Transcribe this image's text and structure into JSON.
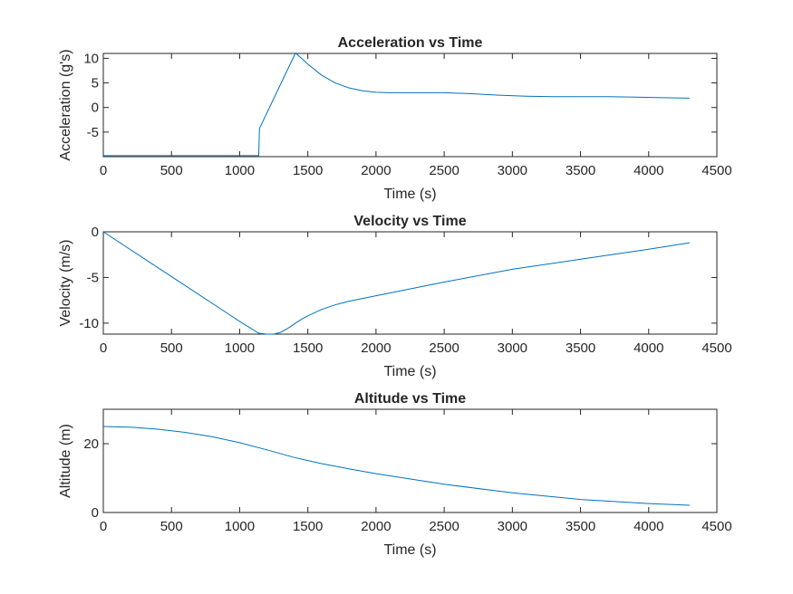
{
  "chart_data": [
    {
      "type": "line",
      "title": "Acceleration vs Time",
      "xlabel": "Time (s)",
      "ylabel": "Acceleration (g's)",
      "xlim": [
        0,
        4500
      ],
      "ylim": [
        -10,
        11
      ],
      "xticks": [
        0,
        500,
        1000,
        1500,
        2000,
        2500,
        3000,
        3500,
        4000,
        4500
      ],
      "yticks": [
        -5,
        0,
        5,
        10
      ],
      "series": [
        {
          "color": "#0072BD",
          "x": [
            0,
            1140,
            1145,
            1150,
            1410,
            1450,
            1500,
            1600,
            1700,
            1800,
            1900,
            2000,
            2100,
            2300,
            2500,
            2700,
            2900,
            3100,
            3300,
            3500,
            3700,
            3900,
            4100,
            4300
          ],
          "y": [
            -9.8,
            -9.8,
            -4.3,
            -4.0,
            11.1,
            10.1,
            8.8,
            6.6,
            5.0,
            4.0,
            3.4,
            3.1,
            3.0,
            3.0,
            3.0,
            2.8,
            2.5,
            2.3,
            2.2,
            2.2,
            2.2,
            2.1,
            2.0,
            1.9
          ]
        }
      ]
    },
    {
      "type": "line",
      "title": "Velocity vs Time",
      "xlabel": "Time (s)",
      "ylabel": "Velocity (m/s)",
      "xlim": [
        0,
        4500
      ],
      "ylim": [
        -11.2,
        0
      ],
      "xticks": [
        0,
        500,
        1000,
        1500,
        2000,
        2500,
        3000,
        3500,
        4000,
        4500
      ],
      "yticks": [
        -10,
        -5,
        0
      ],
      "series": [
        {
          "color": "#0072BD",
          "x": [
            0,
            500,
            1000,
            1140,
            1200,
            1250,
            1300,
            1350,
            1400,
            1450,
            1500,
            1600,
            1700,
            1800,
            2000,
            2500,
            3000,
            3500,
            4000,
            4300
          ],
          "y": [
            0,
            -4.9,
            -9.8,
            -11.1,
            -11.2,
            -11.2,
            -11.0,
            -10.6,
            -10.1,
            -9.6,
            -9.2,
            -8.5,
            -8.0,
            -7.6,
            -7.0,
            -5.5,
            -4.1,
            -3.0,
            -1.9,
            -1.2
          ]
        }
      ]
    },
    {
      "type": "line",
      "title": "Altitude vs Time",
      "xlabel": "Time (s)",
      "ylabel": "Altitude (m)",
      "xlim": [
        0,
        4500
      ],
      "ylim": [
        0,
        30
      ],
      "xticks": [
        0,
        500,
        1000,
        1500,
        2000,
        2500,
        3000,
        3500,
        4000,
        4500
      ],
      "yticks": [
        0,
        20
      ],
      "series": [
        {
          "color": "#0072BD",
          "x": [
            0,
            200,
            400,
            600,
            800,
            1000,
            1200,
            1400,
            1600,
            1800,
            2000,
            2500,
            3000,
            3500,
            4000,
            4300
          ],
          "y": [
            25.0,
            24.8,
            24.2,
            23.3,
            22.0,
            20.3,
            18.2,
            16.0,
            14.2,
            12.7,
            11.3,
            8.2,
            5.7,
            3.8,
            2.6,
            2.1
          ]
        }
      ]
    }
  ]
}
